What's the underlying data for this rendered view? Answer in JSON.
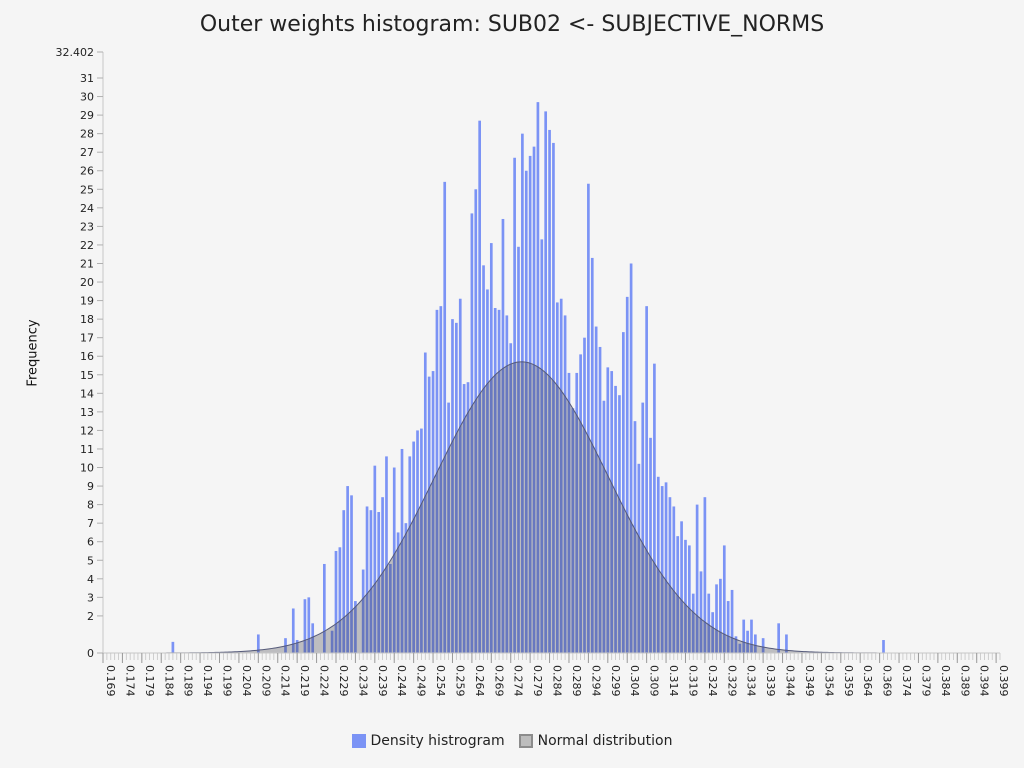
{
  "chart_data": {
    "type": "bar",
    "title": "Outer weights histogram: SUB02 <- SUBJECTIVE_NORMS",
    "xlabel": "",
    "ylabel": "Frequency",
    "ylim": [
      0,
      32.402
    ],
    "y_max_label": "32.402",
    "yticks": [
      0,
      2,
      3,
      4,
      5,
      6,
      7,
      8,
      9,
      10,
      11,
      12,
      13,
      14,
      15,
      16,
      17,
      18,
      19,
      20,
      21,
      22,
      23,
      24,
      25,
      26,
      27,
      28,
      29,
      30,
      31
    ],
    "xlim": [
      0.169,
      0.4
    ],
    "xtick_labels": [
      "0.169",
      "0.174",
      "0.179",
      "0.184",
      "0.189",
      "0.194",
      "0.199",
      "0.204",
      "0.209",
      "0.214",
      "0.219",
      "0.224",
      "0.229",
      "0.234",
      "0.239",
      "0.244",
      "0.249",
      "0.254",
      "0.259",
      "0.264",
      "0.269",
      "0.274",
      "0.279",
      "0.284",
      "0.289",
      "0.294",
      "0.299",
      "0.304",
      "0.309",
      "0.314",
      "0.319",
      "0.324",
      "0.329",
      "0.334",
      "0.339",
      "0.344",
      "0.349",
      "0.354",
      "0.359",
      "0.364",
      "0.369",
      "0.374",
      "0.379",
      "0.384",
      "0.389",
      "0.394",
      "0.399"
    ],
    "bin_width": 0.001,
    "series": [
      {
        "name": "Density histrogram",
        "color": "#7b93f5",
        "x": [
          0.187,
          0.209,
          0.216,
          0.218,
          0.219,
          0.221,
          0.222,
          0.223,
          0.226,
          0.228,
          0.229,
          0.23,
          0.231,
          0.232,
          0.233,
          0.234,
          0.236,
          0.237,
          0.238,
          0.239,
          0.24,
          0.241,
          0.242,
          0.243,
          0.244,
          0.245,
          0.246,
          0.247,
          0.248,
          0.249,
          0.25,
          0.251,
          0.252,
          0.253,
          0.254,
          0.255,
          0.256,
          0.257,
          0.258,
          0.259,
          0.26,
          0.261,
          0.262,
          0.263,
          0.264,
          0.265,
          0.266,
          0.267,
          0.268,
          0.269,
          0.27,
          0.271,
          0.272,
          0.273,
          0.274,
          0.275,
          0.276,
          0.277,
          0.278,
          0.279,
          0.28,
          0.281,
          0.282,
          0.283,
          0.284,
          0.285,
          0.286,
          0.287,
          0.288,
          0.289,
          0.29,
          0.291,
          0.292,
          0.293,
          0.294,
          0.295,
          0.296,
          0.297,
          0.298,
          0.299,
          0.3,
          0.301,
          0.302,
          0.303,
          0.304,
          0.305,
          0.306,
          0.307,
          0.308,
          0.309,
          0.31,
          0.311,
          0.312,
          0.313,
          0.314,
          0.315,
          0.316,
          0.317,
          0.318,
          0.319,
          0.32,
          0.321,
          0.322,
          0.323,
          0.324,
          0.325,
          0.326,
          0.327,
          0.328,
          0.329,
          0.33,
          0.331,
          0.332,
          0.333,
          0.334,
          0.335,
          0.336,
          0.337,
          0.339,
          0.343,
          0.345,
          0.37
        ],
        "values": [
          0.6,
          1,
          0.8,
          2.4,
          0.7,
          2.9,
          3,
          1.6,
          4.8,
          1.2,
          5.5,
          5.7,
          7.7,
          9,
          8.5,
          2.8,
          4.5,
          7.9,
          7.7,
          10.1,
          7.6,
          8.4,
          10.6,
          4.8,
          10,
          6.5,
          11,
          7,
          10.6,
          11.4,
          12,
          12.1,
          16.2,
          14.9,
          15.2,
          18.5,
          18.7,
          25.4,
          13.5,
          18,
          17.8,
          19.1,
          14.5,
          14.6,
          23.7,
          25,
          28.7,
          20.9,
          19.6,
          22.1,
          18.6,
          18.5,
          23.4,
          18.2,
          16.7,
          26.7,
          21.9,
          28,
          26,
          26.8,
          27.3,
          29.7,
          22.3,
          29.2,
          28.2,
          27.5,
          18.9,
          19.1,
          18.2,
          15.1,
          13.2,
          15.1,
          16.1,
          17,
          25.3,
          21.3,
          17.6,
          16.5,
          13.6,
          15.4,
          15.2,
          14.4,
          13.9,
          17.3,
          19.2,
          21,
          12.5,
          10.2,
          13.5,
          18.7,
          11.6,
          15.6,
          9.5,
          9,
          9.2,
          8.4,
          7.9,
          6.3,
          7.1,
          6.1,
          5.8,
          3.2,
          8,
          4.4,
          8.4,
          3.2,
          2.2,
          3.7,
          4,
          5.8,
          2.8,
          3.4,
          0.9,
          0.5,
          1.8,
          1.2,
          1.8,
          1,
          0.8,
          1.6,
          1,
          0.7
        ]
      },
      {
        "name": "Normal distribution",
        "color": "#9e9e9e",
        "type": "normal_curve",
        "mean": 0.2768,
        "sd": 0.0223,
        "peak": 15.7
      }
    ],
    "grid": false,
    "legend_position": "bottom-center"
  }
}
